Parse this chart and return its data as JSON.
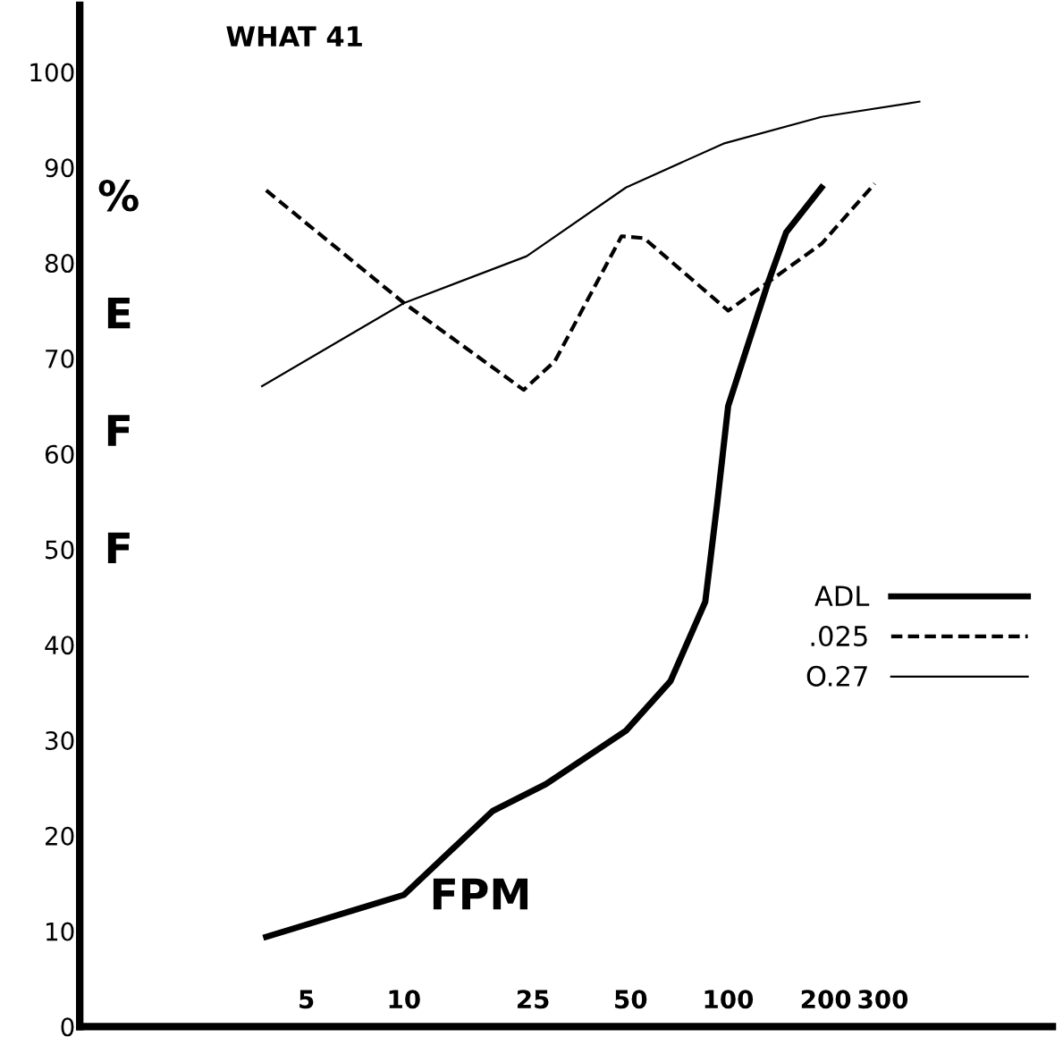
{
  "chart_data": {
    "type": "line",
    "title": "WHAT 41",
    "ylabel": "%EFF",
    "xlabel": "FPM",
    "log": "x",
    "xlim": [
      1,
      1000
    ],
    "xticks": [
      5,
      10,
      25,
      50,
      100,
      200,
      300
    ],
    "ylim": [
      0,
      107
    ],
    "yticks": [
      0,
      10,
      20,
      30,
      40,
      50,
      60,
      70,
      80,
      90,
      100
    ],
    "grid": false,
    "legend": "right",
    "marker": "none",
    "series": [
      {
        "name": "ADL",
        "color": "#000000",
        "line_style": "solid",
        "x": [
          3.76,
          10,
          18.8,
          27.4,
          48.4,
          66.4,
          85,
          92.5,
          100,
          113,
          133,
          151,
          194
        ],
        "values": [
          9.4,
          13.8,
          22.6,
          25.4,
          31,
          36.2,
          44.5,
          54.8,
          65,
          70.6,
          78,
          83.2,
          87.9
        ]
      },
      {
        "name": ".025",
        "color": "#000000",
        "line_style": "dashed",
        "x": [
          3.76,
          10,
          23.4,
          29.2,
          46.9,
          55,
          100,
          133,
          194,
          283
        ],
        "values": [
          87.6,
          75.8,
          66.7,
          69.7,
          82.8,
          82.6,
          75,
          78,
          82,
          88.3
        ]
      },
      {
        "name": "O.27",
        "color": "#000000",
        "line_style": "solid",
        "x": [
          3.65,
          10,
          23.9,
          48.4,
          96.7,
          194,
          389
        ],
        "values": [
          67.1,
          75.8,
          80.7,
          87.9,
          92.5,
          95.3,
          96.9
        ]
      }
    ]
  }
}
